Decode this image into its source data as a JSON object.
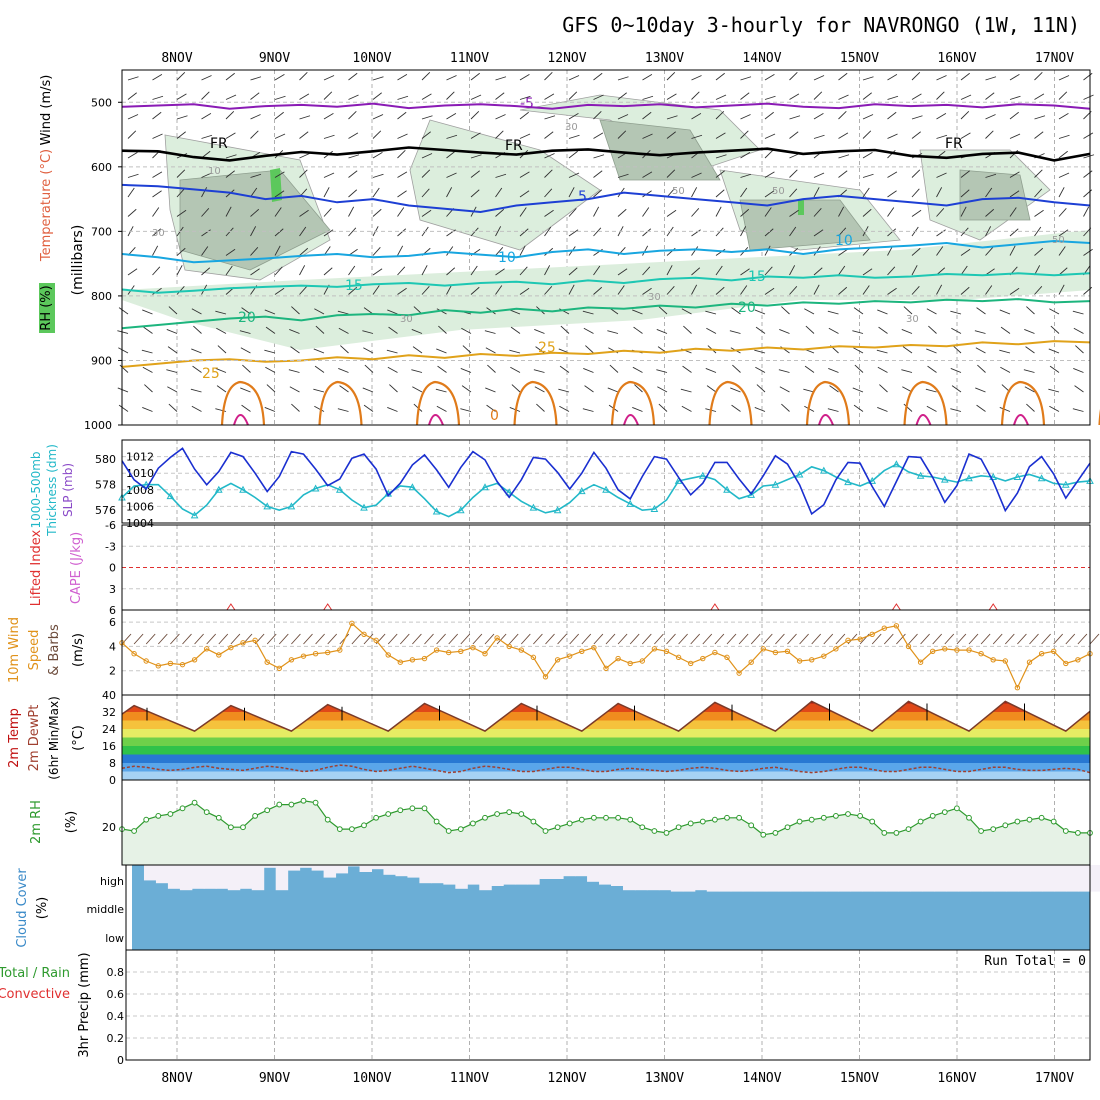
{
  "header": {
    "title": "GFS 0~10day 3-hourly for NAVRONGO (1W, 11N)"
  },
  "dates": [
    "8NOV",
    "9NOV",
    "10NOV",
    "11NOV",
    "12NOV",
    "13NOV",
    "14NOV",
    "15NOV",
    "16NOV",
    "17NOV"
  ],
  "colors": {
    "wind500": "#8a1bb5",
    "freezing": "#000000",
    "t5": "#1d3fd4",
    "t10": "#18a6e0",
    "t15": "#1dc7b3",
    "t20": "#1db57e",
    "t25": "#e0a21a",
    "t30": "#e07b1a",
    "rh_light": "#dceedd",
    "rh_mid": "#b4c6b4",
    "rh_dark": "#8fa08f",
    "rh_green": "#5cc85c",
    "slp": "#1a2fd0",
    "thickness": "#22b8c8",
    "cape_red": "#e03030",
    "wind10m": "#e0921a",
    "barb": "#6b4a3a",
    "temp_dark": "#c01010",
    "dewpt": "#a04030",
    "rh2m": "#2e9a2e",
    "cloud": "#6baed6",
    "cloud_clear": "#f4f0f8"
  },
  "chart_data": [
    {
      "panel": "cross-section",
      "type": "line",
      "ylabel_parts": [
        "Wind (m/s)",
        "Temperature (°C)",
        "RH (%)",
        "(millibars)"
      ],
      "ylabel_note": "",
      "yticks": [
        500,
        600,
        700,
        800,
        900,
        1000
      ],
      "ylim": [
        450,
        1000
      ],
      "contour_labels": {
        "freezing": "FR",
        "temps": [
          "-5",
          "5",
          "10",
          "15",
          "20",
          "25",
          "0"
        ],
        "rh": [
          "10",
          "30",
          "50"
        ]
      },
      "series": [
        {
          "label": "-5",
          "pressure_mb": [
            507,
            505,
            503,
            510,
            506,
            504,
            507,
            502,
            509,
            505,
            503,
            506,
            510,
            504,
            506,
            503,
            508,
            505,
            502,
            507,
            509,
            503,
            506,
            504,
            508,
            503,
            505,
            510
          ]
        },
        {
          "label": "0",
          "pressure_mb": [
            575,
            576,
            585,
            590,
            583,
            577,
            581,
            576,
            570,
            574,
            578,
            581,
            575,
            573,
            578,
            582,
            578,
            575,
            572,
            580,
            576,
            574,
            583,
            586,
            580,
            578,
            590,
            580
          ]
        },
        {
          "label": "5",
          "pressure_mb": [
            628,
            630,
            635,
            640,
            650,
            645,
            655,
            650,
            660,
            665,
            670,
            660,
            655,
            650,
            640,
            645,
            650,
            655,
            660,
            650,
            645,
            650,
            655,
            660,
            650,
            648,
            655,
            660
          ]
        },
        {
          "label": "10",
          "pressure_mb": [
            735,
            740,
            748,
            745,
            742,
            738,
            735,
            740,
            738,
            732,
            736,
            740,
            732,
            728,
            735,
            730,
            728,
            732,
            728,
            735,
            728,
            725,
            722,
            718,
            725,
            720,
            715,
            718
          ]
        },
        {
          "label": "15",
          "pressure_mb": [
            790,
            795,
            792,
            788,
            786,
            784,
            786,
            782,
            780,
            784,
            780,
            778,
            782,
            776,
            780,
            774,
            772,
            776,
            770,
            772,
            768,
            772,
            770,
            766,
            768,
            765,
            768,
            765
          ]
        },
        {
          "label": "20",
          "pressure_mb": [
            850,
            845,
            840,
            835,
            832,
            838,
            830,
            828,
            830,
            822,
            826,
            820,
            824,
            818,
            820,
            815,
            818,
            812,
            815,
            810,
            812,
            808,
            810,
            806,
            808,
            805,
            810,
            808
          ]
        },
        {
          "label": "25",
          "pressure_mb": [
            910,
            905,
            900,
            898,
            902,
            900,
            895,
            898,
            892,
            896,
            890,
            893,
            888,
            890,
            885,
            888,
            882,
            885,
            880,
            883,
            878,
            880,
            876,
            878,
            872,
            875,
            870,
            872
          ]
        }
      ]
    },
    {
      "panel": "slp-thickness",
      "type": "line",
      "ylabel_parts": [
        "1000-500mb",
        "Thickness (dm)",
        "SLP (mb)"
      ],
      "slp_ticks": [
        1004,
        1006,
        1008,
        1010,
        1012
      ],
      "slp_ylim": [
        1004,
        1014
      ],
      "thickness_ticks": [
        576,
        578,
        580
      ],
      "thickness_ylim": [
        575,
        581.5
      ],
      "series": [
        {
          "name": "SLP",
          "values": [
            1011.5,
            1009.2,
            1008.1,
            1010.6,
            1011.9,
            1013.0,
            1010.5,
            1008.6,
            1010.2,
            1012.5,
            1012.0,
            1010.0,
            1007.8,
            1009.6,
            1012.6,
            1012.3,
            1010.5,
            1008.5,
            1009.3,
            1011.8,
            1012.3,
            1010.5,
            1007.3,
            1008.8,
            1011.0,
            1012.2,
            1010.4,
            1008.3,
            1010.7,
            1012.6,
            1011.6,
            1009.0,
            1007.1,
            1009.2,
            1011.9,
            1011.7,
            1010.1,
            1008.1,
            1010.0,
            1012.5,
            1010.6,
            1008.0,
            1006.9,
            1009.6,
            1012.0,
            1011.7,
            1009.5,
            1007.4,
            1008.8,
            1011.3,
            1011.3,
            1009.3,
            1007.5,
            1009.7,
            1012.1,
            1011.1,
            1008.6,
            1005.1,
            1006.2,
            1009.2,
            1011.3,
            1011.2,
            1008.4,
            1006.0,
            1009.0,
            1012.0,
            1011.9,
            1009.5,
            1006.5,
            1008.5,
            1012.3,
            1011.7,
            1009.0,
            1005.5,
            1007.6,
            1010.8,
            1012.0,
            1009.9,
            1007.0,
            1009.1,
            1011.2
          ]
        },
        {
          "name": "Thickness",
          "values": [
            577.0,
            577.9,
            578.0,
            578.0,
            577.1,
            576.1,
            575.6,
            576.4,
            577.6,
            578.1,
            577.6,
            577.0,
            576.3,
            576.0,
            576.3,
            577.2,
            577.7,
            578.0,
            577.6,
            576.8,
            576.2,
            576.4,
            577.3,
            577.9,
            577.8,
            576.9,
            575.9,
            575.5,
            576.0,
            577.0,
            577.8,
            578.1,
            577.4,
            576.7,
            576.2,
            575.8,
            576.0,
            576.6,
            577.5,
            578.0,
            577.6,
            577.0,
            576.5,
            576.0,
            576.1,
            576.8,
            578.3,
            578.5,
            578.7,
            578.4,
            577.6,
            576.9,
            577.2,
            577.9,
            578.0,
            578.4,
            578.8,
            579.4,
            579.1,
            578.6,
            578.2,
            577.9,
            578.3,
            579.1,
            579.6,
            579.0,
            578.7,
            578.6,
            578.4,
            578.2,
            578.5,
            578.7,
            578.6,
            578.3,
            578.6,
            578.8,
            578.5,
            578.1,
            578.0,
            578.2,
            578.3
          ]
        }
      ]
    },
    {
      "panel": "lifted-index-cape",
      "type": "line",
      "ylabel_parts": [
        "Lifted Index",
        "CAPE (J/kg)"
      ],
      "yticks": [
        "-6",
        "-3",
        "0",
        "3",
        "6"
      ],
      "ylim": [
        -6,
        6
      ],
      "zero_line": 0,
      "cape_spikes_x": [
        9,
        17,
        49,
        64,
        72
      ]
    },
    {
      "panel": "wind10m",
      "type": "line",
      "ylabel_parts": [
        "10m Wind",
        "Speed",
        "& Barbs",
        "(m/s)"
      ],
      "yticks": [
        2,
        4,
        6
      ],
      "ylim": [
        0,
        7
      ],
      "series": [
        {
          "name": "10m Wind Speed",
          "values": [
            4.3,
            3.4,
            2.8,
            2.4,
            2.6,
            2.5,
            2.9,
            3.8,
            3.3,
            3.9,
            4.3,
            4.5,
            2.7,
            2.2,
            2.9,
            3.2,
            3.4,
            3.5,
            3.7,
            5.9,
            5.0,
            4.5,
            3.3,
            2.7,
            2.9,
            3.0,
            3.7,
            3.5,
            3.6,
            3.9,
            3.4,
            4.7,
            4.0,
            3.7,
            3.1,
            1.5,
            2.9,
            3.2,
            3.6,
            3.9,
            2.2,
            3.0,
            2.6,
            2.8,
            3.8,
            3.6,
            3.1,
            2.6,
            3.0,
            3.5,
            3.1,
            1.8,
            2.7,
            3.8,
            3.5,
            3.6,
            2.8,
            2.9,
            3.2,
            3.8,
            4.5,
            4.6,
            5.0,
            5.5,
            5.7,
            4.0,
            2.7,
            3.6,
            3.8,
            3.7,
            3.7,
            3.4,
            2.9,
            2.8,
            0.6,
            2.7,
            3.4,
            3.6,
            2.6,
            2.9,
            3.4
          ]
        }
      ]
    },
    {
      "panel": "temperature",
      "type": "area",
      "ylabel_parts": [
        "2m Temp",
        "2m DewPt",
        "(6hr Min/Max)",
        "(°C)"
      ],
      "yticks": [
        0,
        8,
        16,
        24,
        32,
        40
      ],
      "ylim": [
        0,
        40
      ],
      "color_bands": [
        {
          "from": 0,
          "to": 4,
          "color": "#a6d2f4"
        },
        {
          "from": 4,
          "to": 8,
          "color": "#5aa6ea"
        },
        {
          "from": 8,
          "to": 12,
          "color": "#2878d2"
        },
        {
          "from": 12,
          "to": 16,
          "color": "#2fc24a"
        },
        {
          "from": 16,
          "to": 20,
          "color": "#6ed04a"
        },
        {
          "from": 20,
          "to": 24,
          "color": "#e6ec64"
        },
        {
          "from": 24,
          "to": 28,
          "color": "#f5c23c"
        },
        {
          "from": 28,
          "to": 32,
          "color": "#f08c1e"
        },
        {
          "from": 32,
          "to": 36,
          "color": "#e04818"
        },
        {
          "from": 36,
          "to": 40,
          "color": "#b01010"
        }
      ],
      "daily_min": 23,
      "daily_max": [
        35,
        35,
        35.5,
        36,
        36,
        36,
        36.5,
        37,
        37,
        37
      ],
      "dewpoint": [
        5.5,
        6.5,
        6,
        5,
        4.5,
        5,
        6,
        6.5,
        5.5,
        5,
        4.5,
        5.5,
        6.5,
        6,
        5,
        4,
        4.5,
        6,
        7,
        6.5,
        5,
        4,
        4.5,
        5.5,
        6.5,
        5.5,
        4.5,
        3.5,
        4,
        5.5,
        6.5,
        6,
        5,
        4,
        4,
        5,
        6,
        6,
        5,
        4,
        4,
        5,
        5.5,
        5,
        4.5,
        4,
        4.5,
        5.5,
        6,
        5.5,
        4.5,
        4,
        4.5,
        5.5,
        6,
        5,
        4,
        3.5,
        4,
        5,
        6,
        6,
        5,
        4,
        4,
        5,
        6,
        6,
        5,
        4,
        4,
        5,
        6,
        6,
        5,
        4.5,
        4.5,
        5,
        5.5,
        5,
        3.5
      ]
    },
    {
      "panel": "rh2m",
      "type": "area",
      "ylabel_parts": [
        "2m RH",
        "(%)"
      ],
      "yticks": [
        20
      ],
      "ylim": [
        0,
        45
      ],
      "series": [
        {
          "name": "2m RH",
          "values": [
            19,
            18,
            24,
            26,
            27,
            30,
            33,
            28,
            25,
            20,
            20,
            26,
            29,
            32,
            32,
            34,
            33,
            24,
            19,
            19,
            21,
            25,
            27,
            29,
            30,
            30,
            23,
            18,
            19,
            22,
            25,
            27,
            28,
            27,
            23,
            18,
            20,
            22,
            24,
            25,
            25,
            25,
            24,
            20,
            18,
            17,
            20,
            22,
            23,
            24,
            25,
            25,
            21,
            16,
            17,
            20,
            23,
            24,
            25,
            26,
            27,
            26,
            23,
            17,
            17,
            19,
            23,
            26,
            28,
            30,
            25,
            18,
            19,
            21,
            23,
            24,
            25,
            23,
            18,
            17,
            17
          ]
        }
      ]
    },
    {
      "panel": "cloud-cover",
      "type": "heatmap",
      "ylabel_parts": [
        "Cloud Cover",
        "(%)"
      ],
      "levels": [
        "high",
        "middle",
        "low"
      ],
      "high_cloud_fraction": [
        1.0,
        0.45,
        0.35,
        0.15,
        0.1,
        0.15,
        0.15,
        0.15,
        0.1,
        0.15,
        0.1,
        0.9,
        0.1,
        0.8,
        0.9,
        0.8,
        0.55,
        0.7,
        0.95,
        0.75,
        0.85,
        0.65,
        0.6,
        0.55,
        0.35,
        0.35,
        0.3,
        0.15,
        0.3,
        0.1,
        0.25,
        0.3,
        0.3,
        0.3,
        0.5,
        0.5,
        0.6,
        0.6,
        0.4,
        0.3,
        0.25,
        0.1,
        0.1,
        0.1,
        0.1,
        0.05,
        0.05,
        0.1,
        0.05,
        0.05,
        0.05,
        0.05,
        0.05,
        0.05,
        0.05,
        0.05,
        0.05,
        0.05,
        0.05,
        0.05,
        0.05,
        0.05,
        0.05,
        0.05,
        0.05,
        0.05,
        0.05,
        0.05,
        0.05,
        0.05,
        0.05,
        0.05,
        0.05,
        0.05,
        0.05,
        0.05,
        0.05,
        0.05,
        0.05,
        0.05,
        0.05
      ]
    },
    {
      "panel": "precip",
      "type": "bar",
      "ylabel_parts": [
        "Total / Rain",
        "Convective",
        "3hr Precip (mm)"
      ],
      "yticks": [
        "0",
        "0.2",
        "0.4",
        "0.6",
        "0.8"
      ],
      "ylim": [
        0,
        1.0
      ],
      "run_total_label": "Run Total = 0",
      "values": []
    }
  ]
}
